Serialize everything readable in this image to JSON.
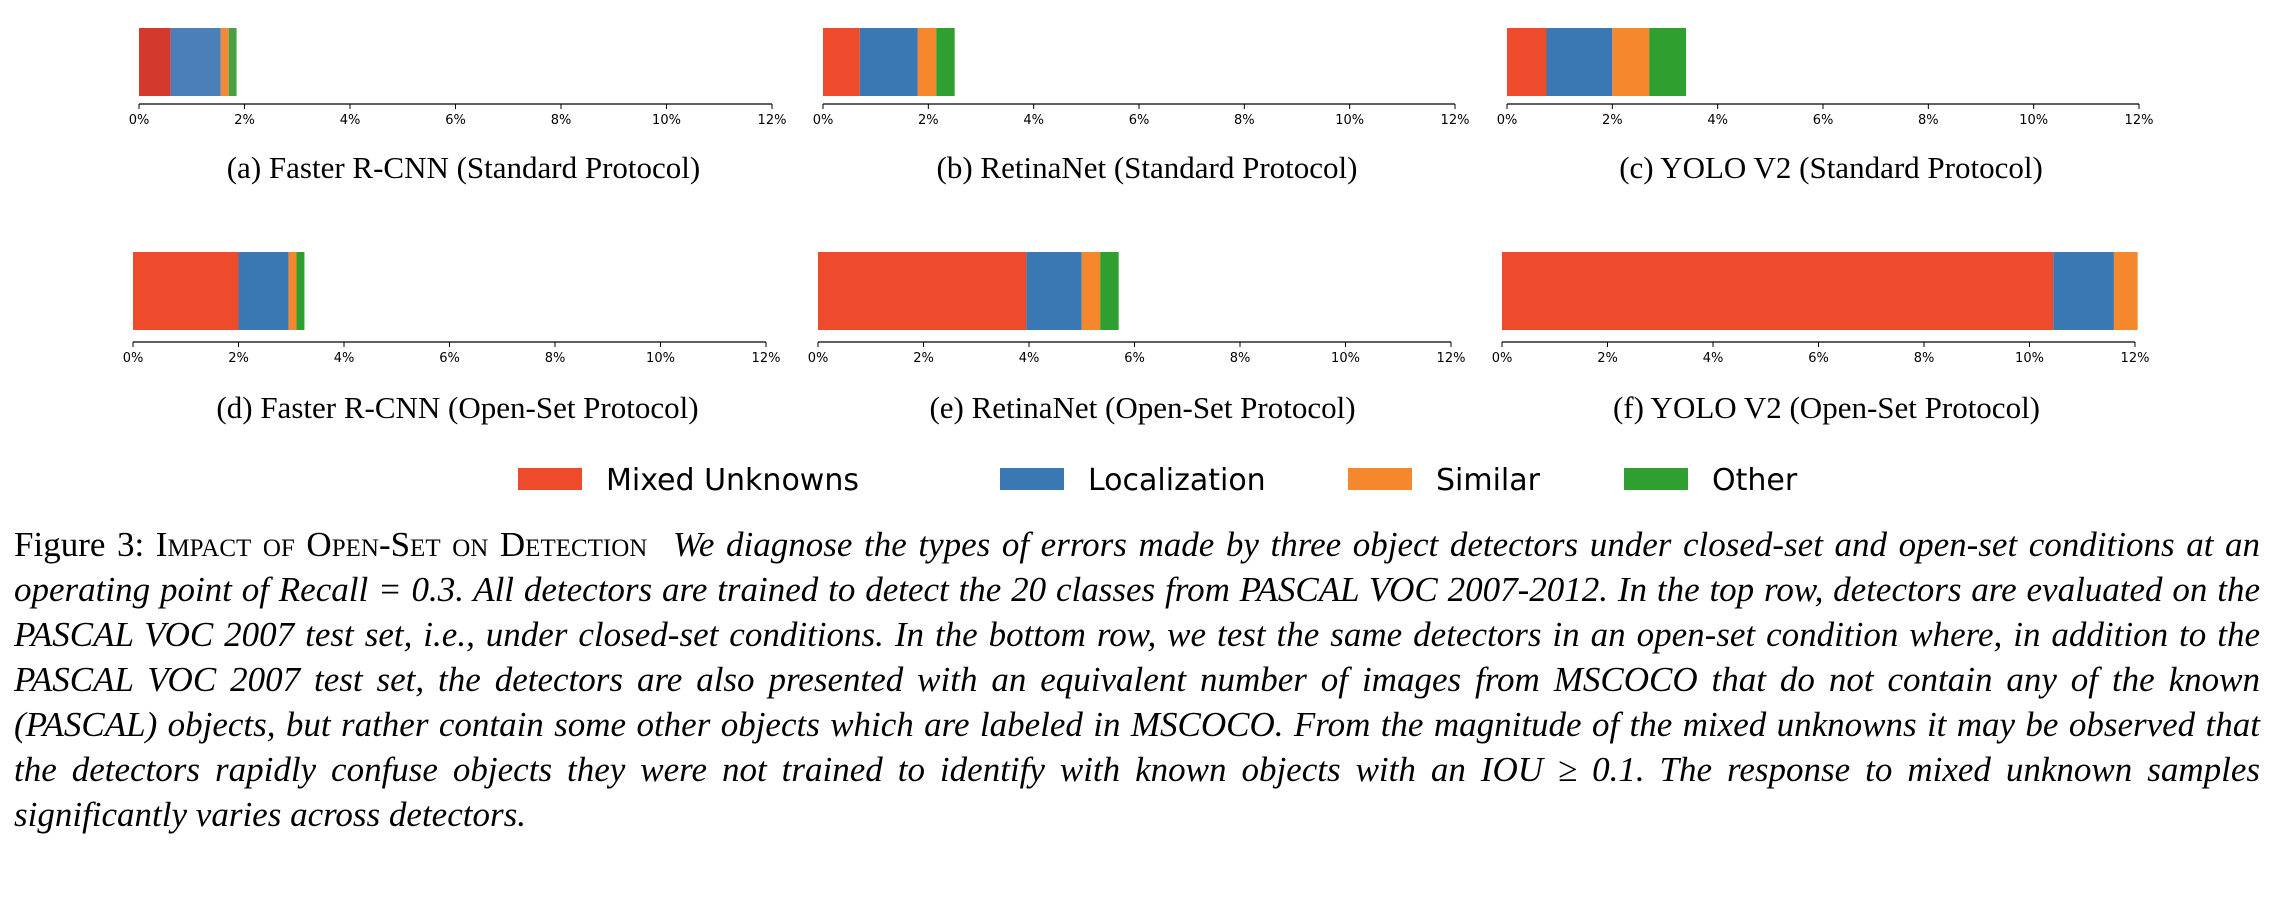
{
  "chart_data": [
    {
      "type": "bar",
      "orientation": "horizontal",
      "stacked": true,
      "subcaption": "(a) Faster R-CNN (Standard Protocol)",
      "xlim": [
        0,
        12
      ],
      "xticks": [
        "0%",
        "2%",
        "4%",
        "6%",
        "8%",
        "10%",
        "12%"
      ],
      "series": [
        {
          "name": "Mixed Unknowns",
          "values": [
            0.6
          ],
          "color": "#d33a2c"
        },
        {
          "name": "Localization",
          "values": [
            0.95
          ],
          "color": "#4a7fb8"
        },
        {
          "name": "Similar",
          "values": [
            0.15
          ],
          "color": "#f08a3a"
        },
        {
          "name": "Other",
          "values": [
            0.15
          ],
          "color": "#4a9e44"
        }
      ]
    },
    {
      "type": "bar",
      "orientation": "horizontal",
      "stacked": true,
      "subcaption": "(b) RetinaNet (Standard Protocol)",
      "xlim": [
        0,
        12
      ],
      "xticks": [
        "0%",
        "2%",
        "4%",
        "6%",
        "8%",
        "10%",
        "12%"
      ],
      "series": [
        {
          "name": "Mixed Unknowns",
          "values": [
            0.7
          ],
          "color": "#ee4a2c"
        },
        {
          "name": "Localization",
          "values": [
            1.1
          ],
          "color": "#3a78b3"
        },
        {
          "name": "Similar",
          "values": [
            0.35
          ],
          "color": "#f5882c"
        },
        {
          "name": "Other",
          "values": [
            0.35
          ],
          "color": "#2fa02f"
        }
      ]
    },
    {
      "type": "bar",
      "orientation": "horizontal",
      "stacked": true,
      "subcaption": "(c) YOLO V2 (Standard Protocol)",
      "xlim": [
        0,
        12
      ],
      "xticks": [
        "0%",
        "2%",
        "4%",
        "6%",
        "8%",
        "10%",
        "12%"
      ],
      "series": [
        {
          "name": "Mixed Unknowns",
          "values": [
            0.75
          ],
          "color": "#ee4a2c"
        },
        {
          "name": "Localization",
          "values": [
            1.25
          ],
          "color": "#3a78b3"
        },
        {
          "name": "Similar",
          "values": [
            0.7
          ],
          "color": "#f5882c"
        },
        {
          "name": "Other",
          "values": [
            0.7
          ],
          "color": "#2fa02f"
        }
      ]
    },
    {
      "type": "bar",
      "orientation": "horizontal",
      "stacked": true,
      "subcaption": "(d) Faster R-CNN (Open-Set Protocol)",
      "xlim": [
        0,
        12
      ],
      "xticks": [
        "0%",
        "2%",
        "4%",
        "6%",
        "8%",
        "10%",
        "12%"
      ],
      "series": [
        {
          "name": "Mixed Unknowns",
          "values": [
            2.0
          ],
          "color": "#ee4a2c"
        },
        {
          "name": "Localization",
          "values": [
            0.95
          ],
          "color": "#3a78b3"
        },
        {
          "name": "Similar",
          "values": [
            0.15
          ],
          "color": "#f5882c"
        },
        {
          "name": "Other",
          "values": [
            0.15
          ],
          "color": "#2fa02f"
        }
      ]
    },
    {
      "type": "bar",
      "orientation": "horizontal",
      "stacked": true,
      "subcaption": "(e) RetinaNet (Open-Set Protocol)",
      "xlim": [
        0,
        12
      ],
      "xticks": [
        "0%",
        "2%",
        "4%",
        "6%",
        "8%",
        "10%",
        "12%"
      ],
      "series": [
        {
          "name": "Mixed Unknowns",
          "values": [
            3.95
          ],
          "color": "#ee4a2c"
        },
        {
          "name": "Localization",
          "values": [
            1.05
          ],
          "color": "#3a78b3"
        },
        {
          "name": "Similar",
          "values": [
            0.35
          ],
          "color": "#f5882c"
        },
        {
          "name": "Other",
          "values": [
            0.35
          ],
          "color": "#2fa02f"
        }
      ]
    },
    {
      "type": "bar",
      "orientation": "horizontal",
      "stacked": true,
      "subcaption": "(f) YOLO V2 (Open-Set Protocol)",
      "xlim": [
        0,
        12
      ],
      "xticks": [
        "0%",
        "2%",
        "4%",
        "6%",
        "8%",
        "10%",
        "12%"
      ],
      "series": [
        {
          "name": "Mixed Unknowns",
          "values": [
            10.45
          ],
          "color": "#ee4a2c"
        },
        {
          "name": "Localization",
          "values": [
            1.15
          ],
          "color": "#3a78b3"
        },
        {
          "name": "Similar",
          "values": [
            0.45
          ],
          "color": "#f5882c"
        },
        {
          "name": "Other",
          "values": [
            0.0
          ],
          "color": "#2fa02f"
        }
      ]
    }
  ],
  "legend": {
    "placement": "bottom-center",
    "items": [
      {
        "label": "Mixed Unknowns",
        "color": "#ee4a2c"
      },
      {
        "label": "Localization",
        "color": "#3a78b3"
      },
      {
        "label": "Similar",
        "color": "#f5882c"
      },
      {
        "label": "Other",
        "color": "#2fa02f"
      }
    ]
  },
  "caption": {
    "label": "Figure 3:",
    "title": "Impact of Open-Set on Detection",
    "body": "We diagnose the types of errors made by three object detectors under closed-set and open-set conditions at an operating point of Recall = 0.3. All detectors are trained to detect the 20 classes from PASCAL VOC 2007-2012. In the top row, detectors are evaluated on the PASCAL VOC 2007 test set, i.e., under closed-set conditions. In the bottom row, we test the same detectors in an open-set condition where, in addition to the PASCAL VOC 2007 test set, the detectors are also presented with an equivalent number of images from MSCOCO that do not contain any of the known (PASCAL) objects, but rather contain some other objects which are labeled in MSCOCO. From the magnitude of the mixed unknowns it may be observed that the detectors rapidly confuse objects they were not trained to identify with known objects with an IOU ≥ 0.1. The response to mixed unknown samples significantly varies across detectors."
  }
}
